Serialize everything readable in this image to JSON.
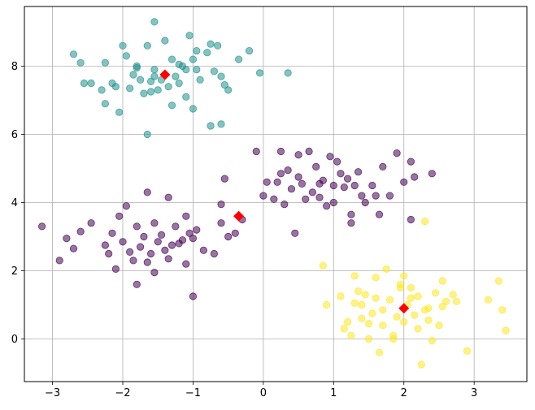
{
  "chart_data": {
    "type": "scatter",
    "title": "",
    "xlabel": "",
    "ylabel": "",
    "xlim": [
      -3.4,
      3.75
    ],
    "ylim": [
      -1.25,
      9.75
    ],
    "grid": true,
    "x_ticks": [
      -3,
      -2,
      -1,
      0,
      1,
      2,
      3
    ],
    "y_ticks": [
      0,
      2,
      4,
      6,
      8
    ],
    "x_tick_labels": [
      "−3",
      "−2",
      "−1",
      "0",
      "1",
      "2",
      "3"
    ],
    "y_tick_labels": [
      "0",
      "2",
      "4",
      "6",
      "8"
    ],
    "series": [
      {
        "color": "#21918c",
        "points": [
          [
            -1.55,
            9.3
          ],
          [
            -2.7,
            8.35
          ],
          [
            -2.6,
            8.1
          ],
          [
            -2.45,
            7.5
          ],
          [
            -2.3,
            7.3
          ],
          [
            -2.25,
            8.1
          ],
          [
            -2.15,
            7.5
          ],
          [
            -2.1,
            7.4
          ],
          [
            -2.0,
            8.6
          ],
          [
            -1.95,
            8.3
          ],
          [
            -1.85,
            7.75
          ],
          [
            -1.8,
            7.95
          ],
          [
            -1.75,
            7.6
          ],
          [
            -1.7,
            7.2
          ],
          [
            -1.65,
            8.6
          ],
          [
            -1.6,
            7.55
          ],
          [
            -1.55,
            7.9
          ],
          [
            -1.5,
            7.3
          ],
          [
            -1.45,
            7.6
          ],
          [
            -1.4,
            8.75
          ],
          [
            -1.35,
            7.4
          ],
          [
            -1.3,
            8.2
          ],
          [
            -1.25,
            7.7
          ],
          [
            -1.2,
            8.05
          ],
          [
            -1.15,
            8.0
          ],
          [
            -1.1,
            7.9
          ],
          [
            -1.05,
            8.9
          ],
          [
            -1.0,
            8.2
          ],
          [
            -0.95,
            8.45
          ],
          [
            -0.9,
            7.6
          ],
          [
            -0.8,
            8.4
          ],
          [
            -0.75,
            8.65
          ],
          [
            -0.65,
            8.6
          ],
          [
            -0.6,
            7.7
          ],
          [
            -0.55,
            7.45
          ],
          [
            -0.5,
            7.3
          ],
          [
            -0.35,
            8.2
          ],
          [
            -0.2,
            8.45
          ],
          [
            -0.05,
            7.8
          ],
          [
            0.35,
            7.8
          ],
          [
            -2.05,
            6.65
          ],
          [
            -1.65,
            6.0
          ],
          [
            -1.0,
            6.75
          ],
          [
            -1.3,
            6.85
          ],
          [
            -2.25,
            6.9
          ],
          [
            -0.6,
            6.3
          ],
          [
            -0.75,
            6.25
          ],
          [
            -1.9,
            7.35
          ],
          [
            -1.55,
            7.7
          ],
          [
            -1.2,
            7.5
          ],
          [
            -0.95,
            7.9
          ],
          [
            -0.7,
            7.85
          ],
          [
            -1.6,
            7.25
          ],
          [
            -1.8,
            8.0
          ],
          [
            -1.1,
            7.1
          ],
          [
            -2.55,
            7.5
          ]
        ]
      },
      {
        "color": "#440154",
        "points": [
          [
            -3.15,
            3.3
          ],
          [
            -2.9,
            2.3
          ],
          [
            -2.8,
            2.95
          ],
          [
            -2.7,
            2.65
          ],
          [
            -2.6,
            3.15
          ],
          [
            -2.45,
            3.4
          ],
          [
            -2.25,
            2.75
          ],
          [
            -2.2,
            2.5
          ],
          [
            -2.15,
            3.1
          ],
          [
            -2.05,
            3.6
          ],
          [
            -2.0,
            2.85
          ],
          [
            -1.95,
            3.9
          ],
          [
            -1.9,
            2.55
          ],
          [
            -1.85,
            2.3
          ],
          [
            -1.8,
            3.3
          ],
          [
            -1.75,
            2.7
          ],
          [
            -1.7,
            3.0
          ],
          [
            -1.65,
            2.25
          ],
          [
            -1.6,
            2.5
          ],
          [
            -1.55,
            3.4
          ],
          [
            -1.5,
            2.85
          ],
          [
            -1.45,
            3.05
          ],
          [
            -1.4,
            2.6
          ],
          [
            -1.35,
            2.35
          ],
          [
            -1.3,
            2.75
          ],
          [
            -1.25,
            3.3
          ],
          [
            -1.2,
            2.8
          ],
          [
            -1.15,
            2.9
          ],
          [
            -1.1,
            2.2
          ],
          [
            -1.05,
            3.1
          ],
          [
            -1.0,
            2.95
          ],
          [
            -0.95,
            3.2
          ],
          [
            -0.85,
            2.6
          ],
          [
            -0.7,
            2.5
          ],
          [
            -0.6,
            3.4
          ],
          [
            -0.5,
            3.0
          ],
          [
            -0.4,
            3.1
          ],
          [
            -0.3,
            3.5
          ],
          [
            -0.6,
            3.95
          ],
          [
            -0.55,
            4.7
          ],
          [
            -1.65,
            4.3
          ],
          [
            -1.35,
            4.15
          ],
          [
            -1.0,
            1.25
          ],
          [
            -1.8,
            1.6
          ],
          [
            -2.1,
            2.05
          ],
          [
            -1.55,
            1.95
          ],
          [
            -1.1,
            3.6
          ],
          [
            -0.1,
            5.5
          ],
          [
            0.05,
            4.6
          ],
          [
            0.0,
            4.2
          ],
          [
            0.2,
            4.6
          ],
          [
            0.25,
            4.85
          ],
          [
            0.3,
            3.95
          ],
          [
            0.35,
            4.95
          ],
          [
            0.4,
            4.4
          ],
          [
            0.45,
            3.1
          ],
          [
            0.5,
            4.75
          ],
          [
            0.55,
            4.55
          ],
          [
            0.6,
            4.1
          ],
          [
            0.65,
            5.5
          ],
          [
            0.7,
            4.3
          ],
          [
            0.75,
            5.05
          ],
          [
            0.8,
            4.15
          ],
          [
            0.85,
            4.65
          ],
          [
            0.9,
            3.9
          ],
          [
            0.95,
            5.35
          ],
          [
            1.0,
            4.5
          ],
          [
            1.05,
            5.2
          ],
          [
            1.1,
            4.85
          ],
          [
            1.15,
            4.45
          ],
          [
            1.2,
            4.7
          ],
          [
            1.25,
            3.65
          ],
          [
            1.3,
            4.5
          ],
          [
            1.35,
            4.9
          ],
          [
            1.4,
            4.2
          ],
          [
            1.45,
            4.0
          ],
          [
            1.55,
            4.5
          ],
          [
            1.65,
            3.65
          ],
          [
            1.7,
            5.05
          ],
          [
            1.8,
            4.2
          ],
          [
            1.9,
            5.45
          ],
          [
            2.0,
            4.6
          ],
          [
            2.1,
            5.2
          ],
          [
            2.15,
            4.75
          ],
          [
            2.4,
            4.85
          ],
          [
            2.1,
            3.5
          ],
          [
            1.25,
            3.4
          ],
          [
            0.25,
            5.5
          ],
          [
            0.5,
            5.4
          ],
          [
            0.8,
            4.55
          ],
          [
            1.0,
            4.0
          ],
          [
            0.15,
            4.1
          ],
          [
            1.6,
            4.2
          ]
        ]
      },
      {
        "color": "#fde725",
        "points": [
          [
            0.85,
            2.15
          ],
          [
            0.9,
            1.0
          ],
          [
            1.1,
            1.25
          ],
          [
            1.2,
            0.5
          ],
          [
            1.25,
            0.1
          ],
          [
            1.3,
            1.05
          ],
          [
            1.35,
            1.4
          ],
          [
            1.4,
            0.6
          ],
          [
            1.45,
            1.3
          ],
          [
            1.5,
            0.0
          ],
          [
            1.55,
            0.75
          ],
          [
            1.6,
            1.2
          ],
          [
            1.65,
            -0.4
          ],
          [
            1.7,
            0.85
          ],
          [
            1.75,
            2.05
          ],
          [
            1.8,
            1.15
          ],
          [
            1.85,
            0.0
          ],
          [
            1.9,
            0.65
          ],
          [
            1.95,
            1.6
          ],
          [
            2.0,
            0.5
          ],
          [
            2.05,
            1.0
          ],
          [
            2.1,
            1.2
          ],
          [
            2.15,
            0.7
          ],
          [
            2.2,
            1.25
          ],
          [
            2.25,
            -0.75
          ],
          [
            2.3,
            0.85
          ],
          [
            2.35,
            0.55
          ],
          [
            2.4,
            -0.05
          ],
          [
            2.45,
            1.35
          ],
          [
            2.5,
            0.4
          ],
          [
            2.55,
            0.95
          ],
          [
            2.6,
            1.1
          ],
          [
            2.7,
            1.3
          ],
          [
            2.75,
            1.1
          ],
          [
            2.9,
            -0.35
          ],
          [
            3.2,
            1.15
          ],
          [
            3.35,
            1.7
          ],
          [
            3.4,
            0.85
          ],
          [
            3.45,
            0.25
          ],
          [
            1.3,
            1.85
          ],
          [
            1.6,
            1.8
          ],
          [
            1.95,
            1.5
          ],
          [
            2.0,
            1.85
          ],
          [
            2.3,
            3.45
          ],
          [
            2.35,
            0.9
          ],
          [
            1.7,
            0.4
          ],
          [
            1.4,
            1.0
          ],
          [
            1.15,
            0.3
          ],
          [
            2.55,
            1.7
          ],
          [
            2.2,
            0.3
          ],
          [
            1.85,
            0.1
          ],
          [
            2.1,
            1.5
          ],
          [
            1.5,
            0.45
          ]
        ]
      }
    ],
    "centroids": {
      "color": "#ff0000",
      "marker": "diamond",
      "points": [
        [
          -1.4,
          7.75
        ],
        [
          -0.35,
          3.6
        ],
        [
          2.0,
          0.9
        ]
      ]
    }
  }
}
